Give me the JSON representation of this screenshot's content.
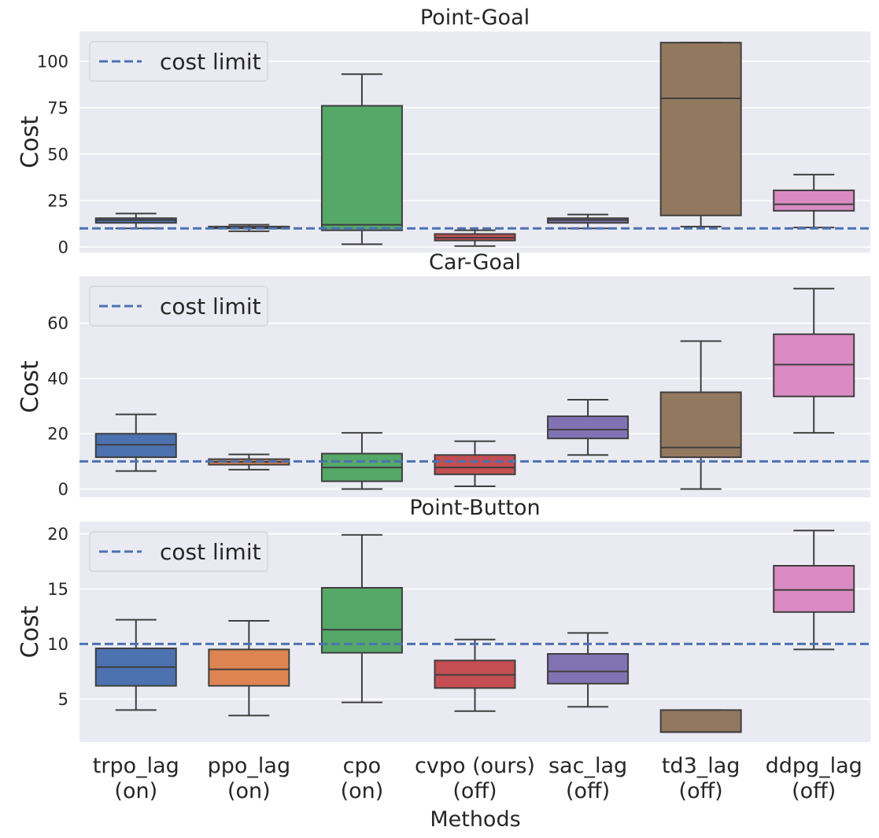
{
  "chart_data": {
    "type": "box",
    "xlabel": "Methods",
    "ylabel": "Cost",
    "categories": [
      [
        "trpo_lag",
        "(on)"
      ],
      [
        "ppo_lag",
        "(on)"
      ],
      [
        "cpo",
        "(on)"
      ],
      [
        "cvpo (ours)",
        "(off)"
      ],
      [
        "sac_lag",
        "(off)"
      ],
      [
        "td3_lag",
        "(off)"
      ],
      [
        "ddpg_lag",
        "(off)"
      ]
    ],
    "colors": [
      "#4c72b0",
      "#dd8452",
      "#55a868",
      "#c44e52",
      "#8172b3",
      "#937860",
      "#da8bc3"
    ],
    "reference_line": {
      "label": "cost limit",
      "value": 10,
      "color": "#4c72b0",
      "style": "dashed"
    },
    "panels": [
      {
        "title": "Point-Goal",
        "ylim": [
          -3,
          116
        ],
        "yticks": [
          0,
          25,
          50,
          75,
          100
        ],
        "boxes": [
          {
            "whislo": 10,
            "q1": 13,
            "med": 14.5,
            "q3": 15.5,
            "whishi": 18
          },
          {
            "whislo": 8.5,
            "q1": 10,
            "med": 10.5,
            "q3": 11,
            "whishi": 12
          },
          {
            "whislo": 1.5,
            "q1": 9,
            "med": 12,
            "q3": 76,
            "whishi": 93
          },
          {
            "whislo": 0.5,
            "q1": 3.5,
            "med": 5,
            "q3": 7,
            "whishi": 9
          },
          {
            "whislo": 10,
            "q1": 13,
            "med": 14.5,
            "q3": 15.5,
            "whishi": 17.5
          },
          {
            "whislo": 11,
            "q1": 17,
            "med": 80,
            "q3": 110,
            "whishi": 110
          },
          {
            "whislo": 10.5,
            "q1": 19.5,
            "med": 23,
            "q3": 30.5,
            "whishi": 39
          }
        ]
      },
      {
        "title": "Car-Goal",
        "ylim": [
          -3,
          77
        ],
        "yticks": [
          0,
          20,
          40,
          60
        ],
        "boxes": [
          {
            "whislo": 6.5,
            "q1": 11.5,
            "med": 16,
            "q3": 20,
            "whishi": 27
          },
          {
            "whislo": 7,
            "q1": 8.8,
            "med": 9.8,
            "q3": 10.8,
            "whishi": 12.5
          },
          {
            "whislo": 0,
            "q1": 2.8,
            "med": 7.8,
            "q3": 12.8,
            "whishi": 20.3
          },
          {
            "whislo": 1,
            "q1": 5.3,
            "med": 7.8,
            "q3": 12.3,
            "whishi": 17.3
          },
          {
            "whislo": 12.3,
            "q1": 18.3,
            "med": 21.5,
            "q3": 26.3,
            "whishi": 32.3
          },
          {
            "whislo": 0,
            "q1": 11.5,
            "med": 15,
            "q3": 35,
            "whishi": 53.5
          },
          {
            "whislo": 20.3,
            "q1": 33.5,
            "med": 45,
            "q3": 56,
            "whishi": 72.5
          }
        ]
      },
      {
        "title": "Point-Button",
        "ylim": [
          1.1,
          21.1
        ],
        "yticks": [
          5,
          10,
          15,
          20
        ],
        "boxes": [
          {
            "whislo": 4,
            "q1": 6.2,
            "med": 7.9,
            "q3": 9.6,
            "whishi": 12.2
          },
          {
            "whislo": 3.5,
            "q1": 6.2,
            "med": 7.7,
            "q3": 9.5,
            "whishi": 12.1
          },
          {
            "whislo": 4.7,
            "q1": 9.2,
            "med": 11.3,
            "q3": 15.1,
            "whishi": 19.9
          },
          {
            "whislo": 3.9,
            "q1": 6,
            "med": 7.2,
            "q3": 8.5,
            "whishi": 10.4
          },
          {
            "whislo": 4.3,
            "q1": 6.4,
            "med": 7.5,
            "q3": 9.1,
            "whishi": 11
          },
          {
            "whislo": 2,
            "q1": 2,
            "med": 2,
            "q3": 4,
            "whishi": 4
          },
          {
            "whislo": 9.5,
            "q1": 12.9,
            "med": 14.9,
            "q3": 17.1,
            "whishi": 20.3
          }
        ]
      }
    ]
  }
}
